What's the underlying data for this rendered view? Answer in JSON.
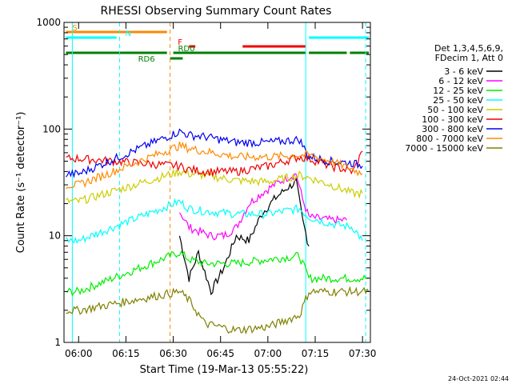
{
  "chart_data": {
    "type": "line",
    "title": "RHESSI Observing Summary Count Rates",
    "xlabel": "Start Time (19-Mar-13 05:55:22)",
    "ylabel": "Count Rate (s⁻¹ detector⁻¹)",
    "y_scale": "log",
    "ylim": [
      1,
      1000
    ],
    "xlim": [
      "05:55:22",
      "07:32:30"
    ],
    "x_ticks": [
      "06:00",
      "06:15",
      "06:30",
      "06:45",
      "07:00",
      "07:15",
      "07:30"
    ],
    "y_ticks": [
      "1",
      "10",
      "100",
      "1000"
    ],
    "legend_header": [
      "Det 1,3,4,5,6,9,",
      "FDecim 1, Att 0"
    ],
    "series": [
      {
        "name": "3 - 6 keV",
        "color": "#000000",
        "points": [
          [
            "06:32",
            10
          ],
          [
            "06:35",
            4
          ],
          [
            "06:38",
            7
          ],
          [
            "06:42",
            3
          ],
          [
            "06:46",
            5
          ],
          [
            "06:50",
            10
          ],
          [
            "06:54",
            9
          ],
          [
            "06:58",
            16
          ],
          [
            "07:02",
            22
          ],
          [
            "07:06",
            28
          ],
          [
            "07:09",
            32
          ],
          [
            "07:11",
            14
          ],
          [
            "07:13",
            8
          ]
        ]
      },
      {
        "name": "6 - 12 keV",
        "color": "#ff00ff",
        "points": [
          [
            "06:32",
            17
          ],
          [
            "06:35",
            12
          ],
          [
            "06:38",
            11
          ],
          [
            "06:42",
            10
          ],
          [
            "06:46",
            10
          ],
          [
            "06:50",
            12
          ],
          [
            "06:54",
            20
          ],
          [
            "06:58",
            25
          ],
          [
            "07:02",
            30
          ],
          [
            "07:06",
            35
          ],
          [
            "07:09",
            38
          ],
          [
            "07:11",
            22
          ],
          [
            "07:13",
            15
          ],
          [
            "07:20",
            14
          ],
          [
            "07:25",
            14
          ]
        ]
      },
      {
        "name": "12 - 25 keV",
        "color": "#00ee00",
        "points": [
          [
            "05:56",
            3
          ],
          [
            "06:00",
            3
          ],
          [
            "06:32",
            7
          ],
          [
            "06:35",
            6
          ],
          [
            "06:40",
            5.5
          ],
          [
            "06:50",
            5.5
          ],
          [
            "07:00",
            6
          ],
          [
            "07:10",
            6.5
          ],
          [
            "07:13",
            4
          ],
          [
            "07:20",
            4
          ],
          [
            "07:32",
            4
          ]
        ]
      },
      {
        "name": "25 - 50 keV",
        "color": "#00ffff",
        "points": [
          [
            "05:56",
            9
          ],
          [
            "06:00",
            9
          ],
          [
            "06:32",
            21
          ],
          [
            "06:35",
            18
          ],
          [
            "06:40",
            17
          ],
          [
            "06:50",
            16
          ],
          [
            "07:00",
            16
          ],
          [
            "07:10",
            18
          ],
          [
            "07:13",
            15
          ],
          [
            "07:20",
            13
          ],
          [
            "07:27",
            12
          ],
          [
            "07:30",
            9
          ]
        ]
      },
      {
        "name": "50 - 100 keV",
        "color": "#cccc00",
        "points": [
          [
            "05:56",
            21
          ],
          [
            "06:00",
            21
          ],
          [
            "06:32",
            40
          ],
          [
            "06:35",
            38
          ],
          [
            "06:40",
            37
          ],
          [
            "06:50",
            33
          ],
          [
            "07:00",
            32
          ],
          [
            "07:10",
            37
          ],
          [
            "07:13",
            35
          ],
          [
            "07:20",
            30
          ],
          [
            "07:27",
            25
          ],
          [
            "07:30",
            25
          ]
        ]
      },
      {
        "name": "100 - 300 keV",
        "color": "#ee0000",
        "points": [
          [
            "05:56",
            53
          ],
          [
            "06:00",
            53
          ],
          [
            "06:32",
            45
          ],
          [
            "06:35",
            42
          ],
          [
            "06:40",
            40
          ],
          [
            "06:50",
            40
          ],
          [
            "07:00",
            45
          ],
          [
            "07:10",
            55
          ],
          [
            "07:13",
            53
          ],
          [
            "07:20",
            45
          ],
          [
            "07:27",
            40
          ],
          [
            "07:30",
            62
          ]
        ]
      },
      {
        "name": "300 - 800 keV",
        "color": "#0000ee",
        "points": [
          [
            "05:56",
            38
          ],
          [
            "06:00",
            38
          ],
          [
            "06:32",
            95
          ],
          [
            "06:35",
            88
          ],
          [
            "06:40",
            85
          ],
          [
            "06:50",
            75
          ],
          [
            "07:00",
            75
          ],
          [
            "07:10",
            80
          ],
          [
            "07:13",
            55
          ],
          [
            "07:20",
            50
          ],
          [
            "07:27",
            48
          ],
          [
            "07:30",
            45
          ]
        ]
      },
      {
        "name": "800 - 7000 keV",
        "color": "#ff8800",
        "points": [
          [
            "05:56",
            30
          ],
          [
            "06:00",
            30
          ],
          [
            "06:32",
            70
          ],
          [
            "06:35",
            66
          ],
          [
            "06:40",
            62
          ],
          [
            "06:50",
            55
          ],
          [
            "07:00",
            55
          ],
          [
            "07:10",
            57
          ],
          [
            "07:13",
            57
          ],
          [
            "07:20",
            50
          ],
          [
            "07:27",
            42
          ],
          [
            "07:30",
            38
          ]
        ]
      },
      {
        "name": "7000 - 15000 keV",
        "color": "#808000",
        "points": [
          [
            "05:56",
            2
          ],
          [
            "06:00",
            2
          ],
          [
            "06:32",
            3
          ],
          [
            "06:35",
            2.5
          ],
          [
            "06:40",
            1.5
          ],
          [
            "06:50",
            1.3
          ],
          [
            "07:00",
            1.4
          ],
          [
            "07:10",
            1.8
          ],
          [
            "07:13",
            3
          ],
          [
            "07:20",
            3
          ],
          [
            "07:32",
            3
          ]
        ]
      }
    ],
    "flag_bars": [
      {
        "label": "S",
        "color": "#ff8800",
        "segments": [
          [
            "05:56",
            "06:28"
          ]
        ]
      },
      {
        "label": "N",
        "color": "#00ffff",
        "segments": [
          [
            "05:56",
            "06:12"
          ],
          [
            "07:13",
            "07:32"
          ]
        ]
      },
      {
        "label": "F",
        "color": "#ee0000",
        "segments": [
          [
            "06:35",
            "06:37"
          ],
          [
            "06:52",
            "07:12"
          ]
        ]
      },
      {
        "label": "RD0",
        "color": "#008000",
        "segments": [
          [
            "05:56",
            "06:28"
          ],
          [
            "06:30",
            "07:12"
          ],
          [
            "07:13",
            "07:25"
          ],
          [
            "07:26",
            "07:32"
          ]
        ]
      },
      {
        "label": "RD6",
        "color": "#008000",
        "segments": [
          [
            "06:29",
            "06:33"
          ]
        ]
      }
    ],
    "vertical_lines": [
      {
        "time": "05:58",
        "color": "#00ffff",
        "style": "solid"
      },
      {
        "time": "06:13",
        "color": "#00ffff",
        "style": "dashed"
      },
      {
        "time": "06:29",
        "color": "#ff8800",
        "style": "dashed"
      },
      {
        "time": "07:12",
        "color": "#00ffff",
        "style": "solid"
      },
      {
        "time": "07:31",
        "color": "#00ffff",
        "style": "dashed"
      }
    ],
    "grid": false,
    "legend_placement": "right",
    "footer_date": "24-Oct-2021 02:44"
  }
}
